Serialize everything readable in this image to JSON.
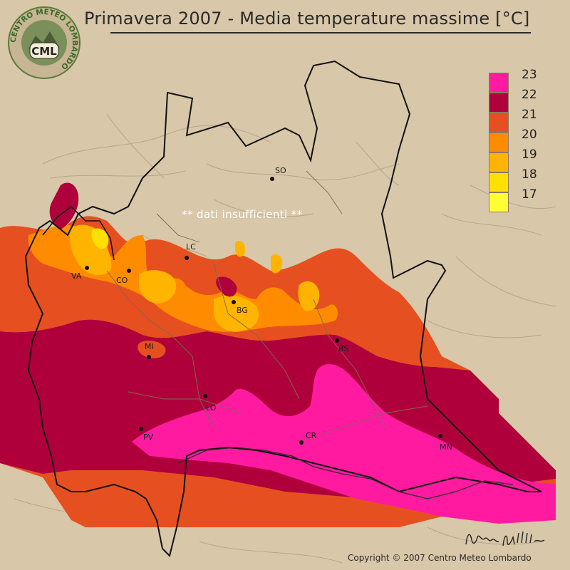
{
  "title": "Primavera 2007 - Media temperature massime [°C]",
  "logo": {
    "ring_text": "CENTRO METEO LOMBARDO",
    "badge_text": "CML"
  },
  "legend": {
    "items": [
      {
        "label": "23",
        "color": "#ff1aa0"
      },
      {
        "label": "22",
        "color": "#b0003c"
      },
      {
        "label": "21",
        "color": "#e65020"
      },
      {
        "label": "20",
        "color": "#ff8c00"
      },
      {
        "label": "19",
        "color": "#ffb400"
      },
      {
        "label": "18",
        "color": "#ffe000"
      },
      {
        "label": "17",
        "color": "#ffff33"
      }
    ]
  },
  "no_data_note": "** dati insufficienti **",
  "cities": [
    {
      "code": "SO"
    },
    {
      "code": "LC"
    },
    {
      "code": "VA"
    },
    {
      "code": "CO"
    },
    {
      "code": "BG"
    },
    {
      "code": "MI"
    },
    {
      "code": "BS"
    },
    {
      "code": "LO"
    },
    {
      "code": "PV"
    },
    {
      "code": "CR"
    },
    {
      "code": "MN"
    }
  ],
  "copyright": "Copyright © 2007 Centro Meteo Lombardo",
  "signature_text": "Bruno Pillini",
  "colors": {
    "background": "#d8c7a8",
    "magenta_23": "#ff1aa0",
    "crimson_22": "#b0003c",
    "red_orange_21": "#e65020",
    "orange_20": "#ff8c00",
    "amber_19": "#ffb400",
    "yellow_18": "#ffe000"
  }
}
